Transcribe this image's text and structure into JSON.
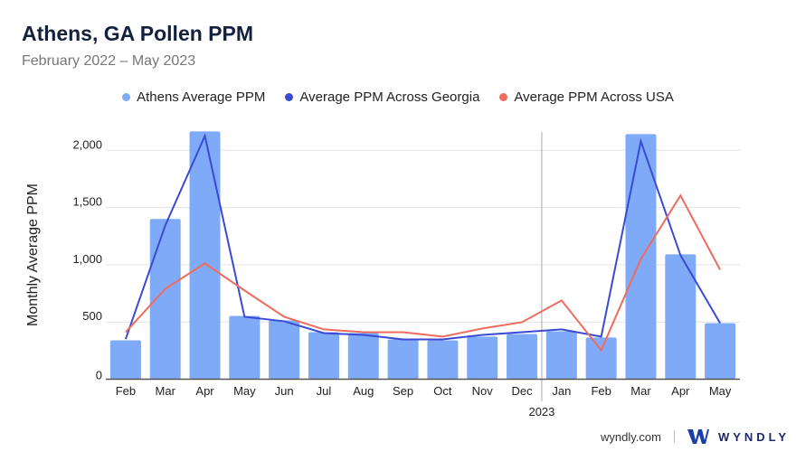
{
  "title": "Athens, GA Pollen PPM",
  "subtitle": "February 2022 – May 2023",
  "footer": {
    "site": "wyndly.com",
    "brand": "WYNDLY"
  },
  "colors": {
    "bars": "#7faaf7",
    "georgia": "#3a4bd3",
    "usa": "#ef6b5e"
  },
  "chart_data": {
    "type": "bar",
    "ylabel": "Monthly Average PPM",
    "ylim": [
      0,
      2200
    ],
    "yticks": [
      0,
      500,
      1000,
      1500,
      2000
    ],
    "ytick_labels": [
      "0",
      "500",
      "1,000",
      "1,500",
      "2,000"
    ],
    "grid": true,
    "legend_position": "top",
    "categories": [
      "Feb",
      "Mar",
      "Apr",
      "May",
      "Jun",
      "Jul",
      "Aug",
      "Sep",
      "Oct",
      "Nov",
      "Dec",
      "Jan",
      "Feb",
      "Mar",
      "Apr",
      "May"
    ],
    "year_marker": {
      "label": "2023",
      "before_category_index": 11
    },
    "series": [
      {
        "name": "Athens Average PPM",
        "kind": "bar",
        "values": [
          340,
          1400,
          2165,
          553,
          514,
          411,
          403,
          348,
          340,
          372,
          395,
          419,
          364,
          2142,
          1091,
          490
        ]
      },
      {
        "name": "Average PPM Across Georgia",
        "kind": "line",
        "values": [
          350,
          1344,
          2126,
          545,
          506,
          403,
          387,
          348,
          348,
          387,
          411,
          435,
          372,
          2079,
          1083,
          490
        ]
      },
      {
        "name": "Average PPM Across USA",
        "kind": "line",
        "values": [
          411,
          790,
          1012,
          775,
          545,
          435,
          411,
          411,
          372,
          443,
          498,
          688,
          253,
          1051,
          1605,
          957
        ]
      }
    ]
  }
}
